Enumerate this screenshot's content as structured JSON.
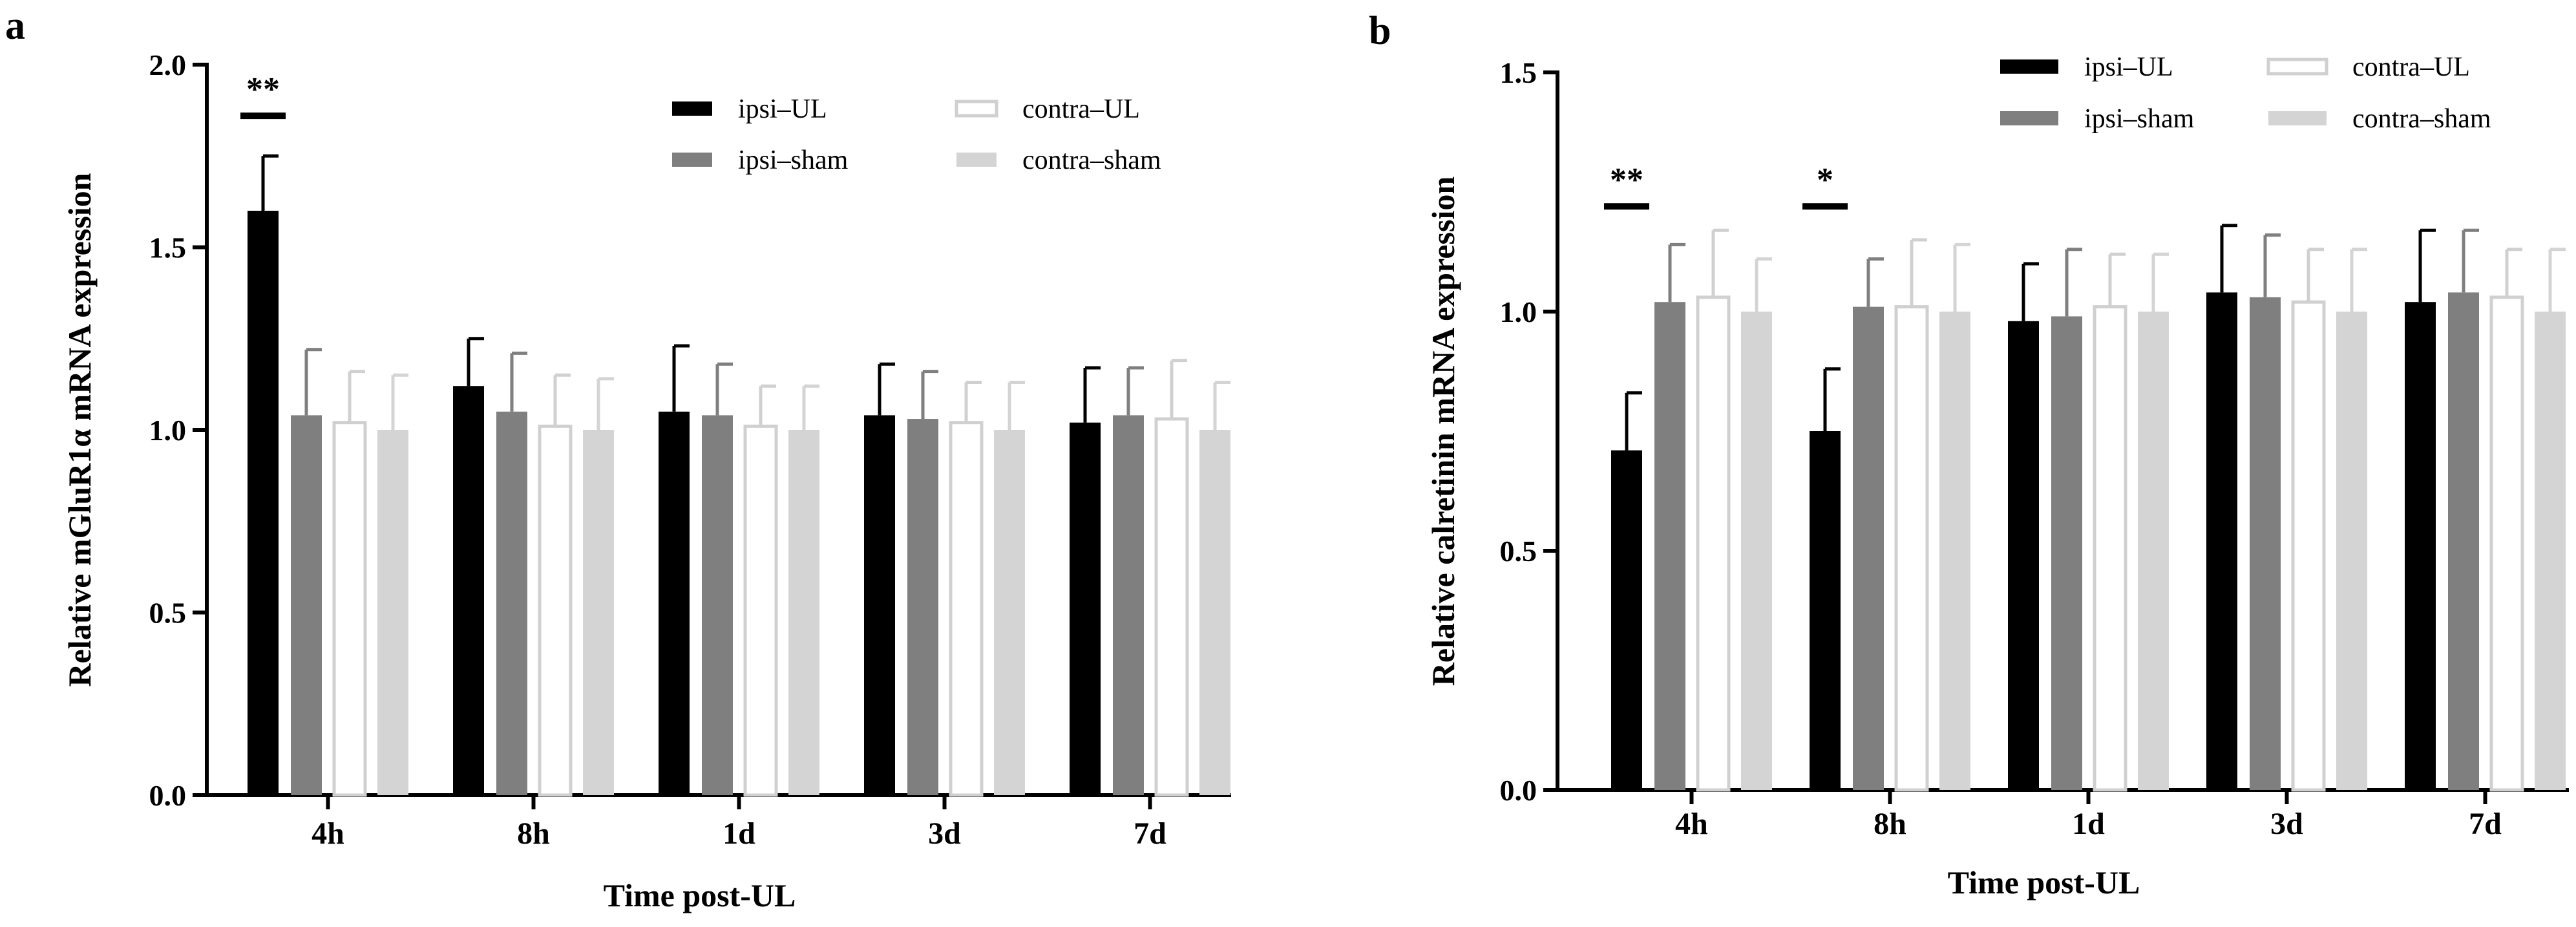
{
  "figure": {
    "panels": [
      "a",
      "b"
    ]
  },
  "colors": {
    "ipsi-UL": "#000000",
    "ipsi-sham": "#7f7f7f",
    "contra-UL": "#ffffff",
    "contra-UL_stroke": "#d0d0d0",
    "contra-sham": "#d4d4d4",
    "axis": "#000000"
  },
  "chart_data": [
    {
      "type": "bar",
      "panel_label": "a",
      "title": "",
      "xlabel": "Time post-UL",
      "ylabel": "Relative mGluR1α mRNA expression",
      "ylim": [
        0,
        2.0
      ],
      "yticks": [
        "0.0",
        "0.5",
        "1.0",
        "1.5",
        "2.0"
      ],
      "categories": [
        "4h",
        "8h",
        "1d",
        "3d",
        "7d"
      ],
      "legend_layout": "top-right, two columns",
      "series": [
        {
          "name": "ipsi–UL",
          "values": [
            1.6,
            1.12,
            1.05,
            1.04,
            1.02
          ],
          "errors": [
            0.15,
            0.13,
            0.18,
            0.14,
            0.15
          ]
        },
        {
          "name": "ipsi–sham",
          "values": [
            1.04,
            1.05,
            1.04,
            1.03,
            1.04
          ],
          "errors": [
            0.18,
            0.16,
            0.14,
            0.13,
            0.13
          ]
        },
        {
          "name": "contra–UL",
          "values": [
            1.02,
            1.01,
            1.01,
            1.02,
            1.03
          ],
          "errors": [
            0.14,
            0.14,
            0.11,
            0.11,
            0.16
          ]
        },
        {
          "name": "contra–sham",
          "values": [
            1.0,
            1.0,
            1.0,
            1.0,
            1.0
          ],
          "errors": [
            0.15,
            0.14,
            0.12,
            0.13,
            0.13
          ]
        }
      ],
      "significance": [
        {
          "category": "4h",
          "label": "**",
          "between": [
            "ipsi–UL",
            "ipsi–sham"
          ],
          "y": 1.86
        }
      ]
    },
    {
      "type": "bar",
      "panel_label": "b",
      "title": "",
      "xlabel": "Time post-UL",
      "ylabel": "Relative calretinin mRNA expression",
      "ylim": [
        0,
        1.5
      ],
      "yticks": [
        "0.0",
        "0.5",
        "1.0",
        "1.5"
      ],
      "categories": [
        "4h",
        "8h",
        "1d",
        "3d",
        "7d"
      ],
      "legend_layout": "top-right, two columns",
      "series": [
        {
          "name": "ipsi–UL",
          "values": [
            0.71,
            0.75,
            0.98,
            1.04,
            1.02
          ],
          "errors": [
            0.12,
            0.13,
            0.12,
            0.14,
            0.15
          ]
        },
        {
          "name": "ipsi–sham",
          "values": [
            1.02,
            1.01,
            0.99,
            1.03,
            1.04
          ],
          "errors": [
            0.12,
            0.1,
            0.14,
            0.13,
            0.13
          ]
        },
        {
          "name": "contra–UL",
          "values": [
            1.03,
            1.01,
            1.01,
            1.02,
            1.03
          ],
          "errors": [
            0.14,
            0.14,
            0.11,
            0.11,
            0.1
          ]
        },
        {
          "name": "contra–sham",
          "values": [
            1.0,
            1.0,
            1.0,
            1.0,
            1.0
          ],
          "errors": [
            0.11,
            0.14,
            0.12,
            0.13,
            0.13
          ]
        }
      ],
      "significance": [
        {
          "category": "4h",
          "label": "**",
          "between": [
            "ipsi–UL",
            "ipsi–sham"
          ],
          "y": 1.22
        },
        {
          "category": "8h",
          "label": "*",
          "between": [
            "ipsi–UL",
            "ipsi–sham"
          ],
          "y": 1.22
        }
      ]
    }
  ]
}
